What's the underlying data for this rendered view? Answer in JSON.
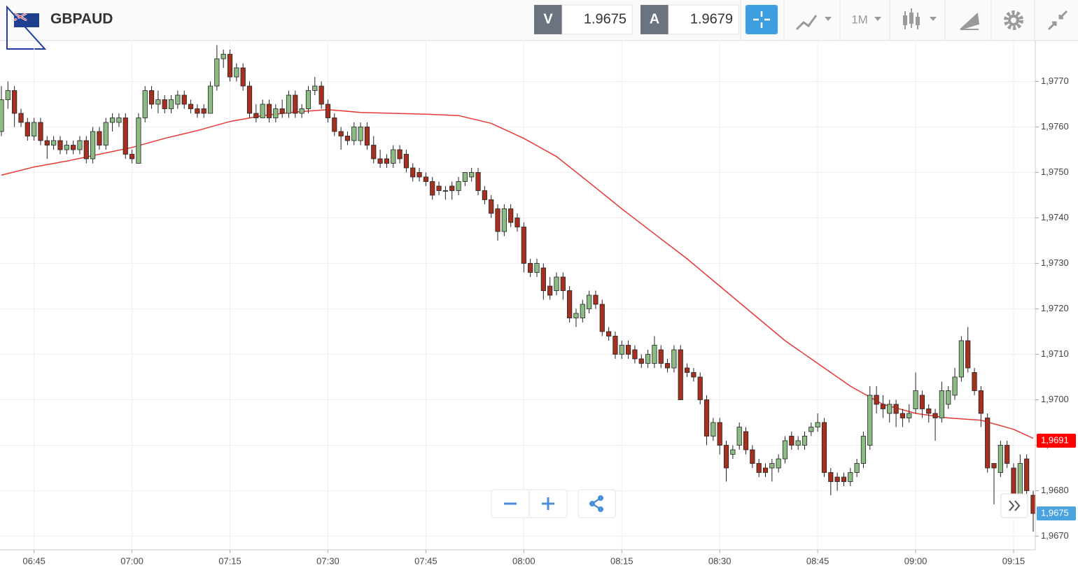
{
  "header": {
    "symbol": "GBPAUD",
    "bid_label": "V",
    "bid": "1.9675",
    "ask_label": "A",
    "ask": "1.9679",
    "timeframe": "1M"
  },
  "chart_data": {
    "type": "candlestick",
    "up_color": "#8dbb84",
    "down_color": "#a5301f",
    "x": [
      "06:40",
      "06:41",
      "06:42",
      "06:43",
      "06:44",
      "06:45",
      "06:46",
      "06:47",
      "06:48",
      "06:49",
      "06:50",
      "06:51",
      "06:52",
      "06:53",
      "06:54",
      "06:55",
      "06:56",
      "06:57",
      "06:58",
      "06:59",
      "07:00",
      "07:01",
      "07:02",
      "07:03",
      "07:04",
      "07:05",
      "07:06",
      "07:07",
      "07:08",
      "07:09",
      "07:10",
      "07:11",
      "07:12",
      "07:13",
      "07:14",
      "07:15",
      "07:16",
      "07:17",
      "07:18",
      "07:19",
      "07:20",
      "07:21",
      "07:22",
      "07:23",
      "07:24",
      "07:25",
      "07:26",
      "07:27",
      "07:28",
      "07:29",
      "07:30",
      "07:31",
      "07:32",
      "07:33",
      "07:34",
      "07:35",
      "07:36",
      "07:37",
      "07:38",
      "07:39",
      "07:40",
      "07:41",
      "07:42",
      "07:43",
      "07:44",
      "07:45",
      "07:46",
      "07:47",
      "07:48",
      "07:49",
      "07:50",
      "07:51",
      "07:52",
      "07:53",
      "07:54",
      "07:55",
      "07:56",
      "07:57",
      "07:58",
      "07:59",
      "08:00",
      "08:01",
      "08:02",
      "08:03",
      "08:04",
      "08:05",
      "08:06",
      "08:07",
      "08:08",
      "08:09",
      "08:10",
      "08:11",
      "08:12",
      "08:13",
      "08:14",
      "08:15",
      "08:16",
      "08:17",
      "08:18",
      "08:19",
      "08:20",
      "08:21",
      "08:22",
      "08:23",
      "08:24",
      "08:25",
      "08:26",
      "08:27",
      "08:28",
      "08:29",
      "08:30",
      "08:31",
      "08:32",
      "08:33",
      "08:34",
      "08:35",
      "08:36",
      "08:37",
      "08:38",
      "08:39",
      "08:40",
      "08:41",
      "08:42",
      "08:43",
      "08:44",
      "08:45",
      "08:46",
      "08:47",
      "08:48",
      "08:49",
      "08:50",
      "08:51",
      "08:52",
      "08:53",
      "08:54",
      "08:55",
      "08:56",
      "08:57",
      "08:58",
      "08:59",
      "09:00",
      "09:01",
      "09:02",
      "09:03",
      "09:04",
      "09:05",
      "09:06",
      "09:07",
      "09:08",
      "09:09",
      "09:10",
      "09:11",
      "09:12",
      "09:13",
      "09:14",
      "09:15",
      "09:16",
      "09:17",
      "09:18"
    ],
    "open": [
      1.9759,
      1.9766,
      1.9768,
      1.9763,
      1.9761,
      1.9758,
      1.9761,
      1.9757,
      1.9756,
      1.9757,
      1.9755,
      1.9756,
      1.9755,
      1.9757,
      1.9753,
      1.9759,
      1.9756,
      1.9761,
      1.9761,
      1.9762,
      1.9754,
      1.9752,
      1.9762,
      1.9768,
      1.9765,
      1.9766,
      1.9764,
      1.9765,
      1.9767,
      1.9765,
      1.9764,
      1.9764,
      1.9763,
      1.9769,
      1.9775,
      1.9776,
      1.9771,
      1.9773,
      1.9769,
      1.9763,
      1.9762,
      1.9765,
      1.9762,
      1.9764,
      1.9763,
      1.9767,
      1.9763,
      1.9764,
      1.9768,
      1.9769,
      1.9765,
      1.9762,
      1.9759,
      1.9758,
      1.9757,
      1.9757,
      1.976,
      1.9756,
      1.9753,
      1.9753,
      1.9752,
      1.9755,
      1.9754,
      1.9751,
      1.975,
      1.9749,
      1.9748,
      1.9747,
      1.9746,
      1.9747,
      1.9746,
      1.9748,
      1.9749,
      1.975,
      1.9746,
      1.9744,
      1.9742,
      1.9737,
      1.9742,
      1.974,
      1.9738,
      1.973,
      1.9728,
      1.9729,
      1.9725,
      1.9724,
      1.9727,
      1.9724,
      1.9718,
      1.9718,
      1.972,
      1.9723,
      1.9721,
      1.9715,
      1.9714,
      1.971,
      1.9712,
      1.9711,
      1.9709,
      1.9708,
      1.9708,
      1.9711,
      1.9708,
      1.9707,
      1.9711,
      1.9707,
      1.9706,
      1.9705,
      1.97,
      1.9692,
      1.9695,
      1.969,
      1.9688,
      1.969,
      1.9693,
      1.9689,
      1.9686,
      1.9685,
      1.9685,
      1.9685,
      1.9687,
      1.9692,
      1.969,
      1.969,
      1.9693,
      1.9694,
      1.9695,
      1.9684,
      1.9683,
      1.9683,
      1.9682,
      1.9684,
      1.9686,
      1.969,
      1.9701,
      1.9699,
      1.9697,
      1.9699,
      1.9697,
      1.9696,
      1.9698,
      1.9701,
      1.9698,
      1.9697,
      1.9696,
      1.9699,
      1.9701,
      1.9705,
      1.9713,
      1.9706,
      1.9702,
      1.9696,
      1.9686,
      1.9684,
      1.969,
      1.9685,
      1.9679,
      1.9687,
      1.9679
    ],
    "high": [
      1.9769,
      1.977,
      1.9769,
      1.9764,
      1.9762,
      1.9762,
      1.9762,
      1.9758,
      1.9758,
      1.9758,
      1.9757,
      1.9757,
      1.9758,
      1.9758,
      1.976,
      1.976,
      1.9762,
      1.9763,
      1.9763,
      1.9763,
      1.9755,
      1.9763,
      1.9769,
      1.9769,
      1.9768,
      1.9767,
      1.9767,
      1.9768,
      1.9768,
      1.9766,
      1.9765,
      1.9765,
      1.977,
      1.9778,
      1.9777,
      1.9777,
      1.9774,
      1.9774,
      1.977,
      1.9765,
      1.9766,
      1.9766,
      1.9765,
      1.9766,
      1.9768,
      1.9768,
      1.9765,
      1.9769,
      1.9771,
      1.977,
      1.9766,
      1.9763,
      1.976,
      1.9759,
      1.9761,
      1.9761,
      1.9761,
      1.9758,
      1.9755,
      1.9754,
      1.9756,
      1.9756,
      1.9755,
      1.9752,
      1.9751,
      1.975,
      1.9749,
      1.9748,
      1.9747,
      1.9748,
      1.9749,
      1.975,
      1.9751,
      1.9751,
      1.9747,
      1.9745,
      1.9743,
      1.9743,
      1.9743,
      1.9741,
      1.9739,
      1.9731,
      1.9731,
      1.973,
      1.9727,
      1.9728,
      1.9728,
      1.9725,
      1.972,
      1.9722,
      1.9724,
      1.9724,
      1.9722,
      1.9716,
      1.9715,
      1.9713,
      1.9713,
      1.9712,
      1.971,
      1.9711,
      1.9714,
      1.9712,
      1.9709,
      1.9712,
      1.9712,
      1.9708,
      1.9707,
      1.9706,
      1.9701,
      1.9696,
      1.9696,
      1.9691,
      1.969,
      1.9695,
      1.9694,
      1.969,
      1.9687,
      1.9686,
      1.9687,
      1.9688,
      1.9692,
      1.9693,
      1.9692,
      1.9693,
      1.9695,
      1.9697,
      1.9696,
      1.9685,
      1.9684,
      1.9684,
      1.9685,
      1.9687,
      1.9693,
      1.9703,
      1.9703,
      1.9701,
      1.97,
      1.97,
      1.9698,
      1.9699,
      1.9706,
      1.9702,
      1.9699,
      1.9698,
      1.9704,
      1.9703,
      1.9707,
      1.9714,
      1.9716,
      1.9707,
      1.9703,
      1.9697,
      1.9686,
      1.9691,
      1.9691,
      1.9686,
      1.9688,
      1.9688,
      1.968
    ],
    "low": [
      1.9758,
      1.9764,
      1.976,
      1.976,
      1.9757,
      1.9757,
      1.9756,
      1.9753,
      1.9755,
      1.9754,
      1.9754,
      1.9754,
      1.9754,
      1.9752,
      1.9752,
      1.9755,
      1.9755,
      1.9759,
      1.976,
      1.9753,
      1.9752,
      1.9752,
      1.9761,
      1.9764,
      1.9763,
      1.9763,
      1.9763,
      1.9764,
      1.9764,
      1.9763,
      1.9762,
      1.9762,
      1.9763,
      1.9768,
      1.9773,
      1.977,
      1.977,
      1.9768,
      1.9762,
      1.9761,
      1.9762,
      1.9761,
      1.9761,
      1.9762,
      1.9762,
      1.9762,
      1.9762,
      1.9763,
      1.9767,
      1.9764,
      1.9761,
      1.9758,
      1.9755,
      1.9756,
      1.9756,
      1.9756,
      1.9755,
      1.9752,
      1.9751,
      1.9751,
      1.9751,
      1.9752,
      1.975,
      1.9748,
      1.9748,
      1.9747,
      1.9744,
      1.9745,
      1.9744,
      1.9744,
      1.9745,
      1.9747,
      1.9748,
      1.9745,
      1.9743,
      1.974,
      1.9735,
      1.9736,
      1.9738,
      1.9737,
      1.9728,
      1.9727,
      1.9727,
      1.9722,
      1.9722,
      1.9723,
      1.9722,
      1.9717,
      1.9716,
      1.9717,
      1.9719,
      1.972,
      1.9714,
      1.9713,
      1.9709,
      1.9709,
      1.9709,
      1.9708,
      1.9707,
      1.9707,
      1.9707,
      1.9707,
      1.9706,
      1.9706,
      1.97,
      1.9705,
      1.9704,
      1.9699,
      1.969,
      1.9691,
      1.9688,
      1.9682,
      1.9687,
      1.9689,
      1.9688,
      1.9685,
      1.9683,
      1.9683,
      1.9682,
      1.9684,
      1.9686,
      1.9689,
      1.9689,
      1.9689,
      1.9692,
      1.9693,
      1.9683,
      1.9679,
      1.968,
      1.9681,
      1.9681,
      1.9683,
      1.9685,
      1.9689,
      1.9697,
      1.9696,
      1.9695,
      1.9694,
      1.9694,
      1.9695,
      1.9697,
      1.9696,
      1.9695,
      1.9691,
      1.9695,
      1.9698,
      1.97,
      1.9704,
      1.9706,
      1.9701,
      1.9694,
      1.9684,
      1.9677,
      1.9683,
      1.9685,
      1.9678,
      1.9678,
      1.9679,
      1.9671
    ],
    "close": [
      1.9766,
      1.9768,
      1.9763,
      1.9761,
      1.9758,
      1.9761,
      1.9757,
      1.9756,
      1.9757,
      1.9755,
      1.9756,
      1.9755,
      1.9757,
      1.9753,
      1.9759,
      1.9756,
      1.9761,
      1.9762,
      1.9762,
      1.9754,
      1.9753,
      1.9762,
      1.9768,
      1.9765,
      1.9766,
      1.9764,
      1.9766,
      1.9767,
      1.9765,
      1.9764,
      1.9763,
      1.9763,
      1.9769,
      1.9775,
      1.9776,
      1.9771,
      1.9773,
      1.9769,
      1.9763,
      1.9762,
      1.9765,
      1.9762,
      1.9764,
      1.9763,
      1.9767,
      1.9763,
      1.9764,
      1.9768,
      1.9769,
      1.9765,
      1.9762,
      1.9759,
      1.9758,
      1.9757,
      1.976,
      1.976,
      1.9756,
      1.9753,
      1.9752,
      1.9752,
      1.9755,
      1.9753,
      1.9751,
      1.9749,
      1.9749,
      1.9748,
      1.9745,
      1.9746,
      1.9746,
      1.9746,
      1.9748,
      1.975,
      1.975,
      1.9746,
      1.9744,
      1.9741,
      1.9737,
      1.9742,
      1.9739,
      1.9738,
      1.973,
      1.9728,
      1.973,
      1.9724,
      1.9723,
      1.9727,
      1.9724,
      1.9718,
      1.9719,
      1.9721,
      1.9723,
      1.9721,
      1.9715,
      1.9714,
      1.971,
      1.9712,
      1.971,
      1.9709,
      1.9708,
      1.971,
      1.9712,
      1.9708,
      1.9707,
      1.9711,
      1.97,
      1.9706,
      1.9705,
      1.97,
      1.9692,
      1.9695,
      1.969,
      1.9685,
      1.9689,
      1.9694,
      1.9689,
      1.9686,
      1.9684,
      1.9684,
      1.9686,
      1.9687,
      1.9691,
      1.969,
      1.9691,
      1.9692,
      1.9694,
      1.9695,
      1.9684,
      1.9682,
      1.9682,
      1.9682,
      1.9684,
      1.9686,
      1.9692,
      1.9701,
      1.9699,
      1.9698,
      1.9699,
      1.9697,
      1.9696,
      1.9697,
      1.9702,
      1.9698,
      1.9697,
      1.9696,
      1.9702,
      1.9702,
      1.9705,
      1.9713,
      1.9707,
      1.9702,
      1.9697,
      1.9685,
      1.9685,
      1.969,
      1.9686,
      1.9679,
      1.9686,
      1.968,
      1.9675
    ],
    "ma": {
      "color": "#e53935",
      "x": [
        "06:40",
        "06:45",
        "06:50",
        "06:55",
        "07:00",
        "07:05",
        "07:10",
        "07:15",
        "07:20",
        "07:25",
        "07:30",
        "07:35",
        "07:40",
        "07:45",
        "07:50",
        "07:55",
        "08:00",
        "08:05",
        "08:10",
        "08:15",
        "08:20",
        "08:25",
        "08:30",
        "08:35",
        "08:40",
        "08:45",
        "08:50",
        "08:55",
        "09:00",
        "09:05",
        "09:10",
        "09:15",
        "09:18"
      ],
      "values": [
        1.97494,
        1.97512,
        1.97525,
        1.9754,
        1.97555,
        1.97575,
        1.97592,
        1.97612,
        1.97625,
        1.97633,
        1.97638,
        1.97632,
        1.9763,
        1.97628,
        1.97625,
        1.97608,
        1.97575,
        1.97535,
        1.97478,
        1.9742,
        1.97365,
        1.9731,
        1.9725,
        1.9719,
        1.9713,
        1.9708,
        1.9703,
        1.9699,
        1.9697,
        1.9696,
        1.96955,
        1.96935,
        1.96915
      ]
    },
    "xlim": [
      "06:40",
      "09:18"
    ],
    "xticks": [
      "06:45",
      "07:00",
      "07:15",
      "07:30",
      "07:45",
      "08:00",
      "08:15",
      "08:30",
      "08:45",
      "09:00",
      "09:15"
    ],
    "ylim": [
      1.9667,
      1.9779
    ],
    "yticks": [
      {
        "value": 1.967,
        "label": "1,9670"
      },
      {
        "value": 1.968,
        "label": "1,9680"
      },
      {
        "value": 1.969,
        "label": "1,9690"
      },
      {
        "value": 1.97,
        "label": "1,9700"
      },
      {
        "value": 1.971,
        "label": "1,9710"
      },
      {
        "value": 1.972,
        "label": "1,9720"
      },
      {
        "value": 1.973,
        "label": "1,9730"
      },
      {
        "value": 1.974,
        "label": "1,9740"
      },
      {
        "value": 1.975,
        "label": "1,9750"
      },
      {
        "value": 1.976,
        "label": "1,9760"
      },
      {
        "value": 1.977,
        "label": "1,9770"
      }
    ],
    "grid": true,
    "price_markers": [
      {
        "value": 1.9691,
        "label": "1,9691",
        "color": "#ff0000"
      },
      {
        "value": 1.9675,
        "label": "1,9675",
        "color": "#4aa3df"
      }
    ]
  }
}
